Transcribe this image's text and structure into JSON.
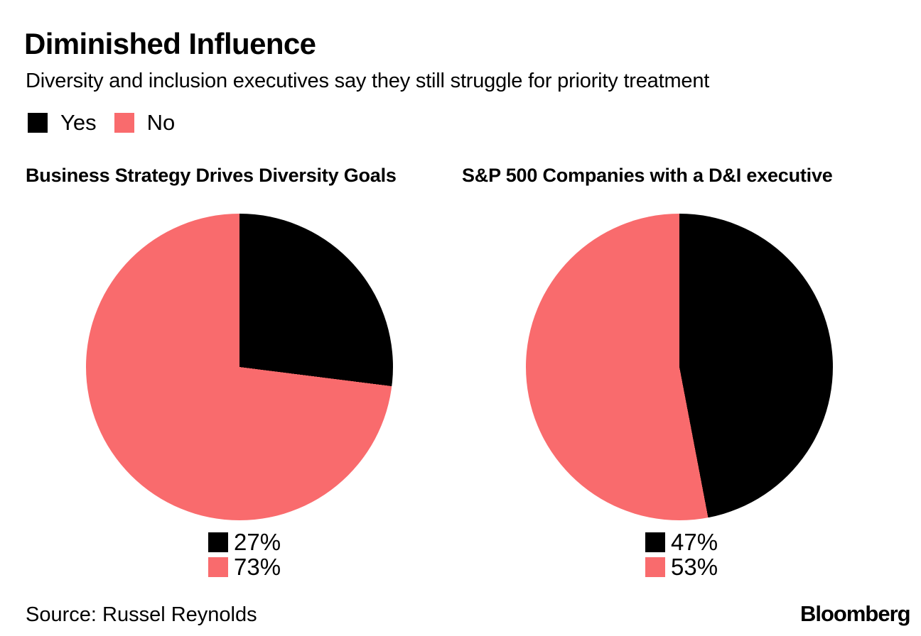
{
  "header": {
    "title": "Diminished Influence",
    "subtitle": "Diversity and inclusion executives say they still struggle for priority treatment"
  },
  "colors": {
    "yes": "#000000",
    "no": "#F96B6D",
    "text": "#000000",
    "background": "#FFFFFF"
  },
  "legend": {
    "items": [
      {
        "label": "Yes",
        "color": "#000000"
      },
      {
        "label": "No",
        "color": "#F96B6D"
      }
    ]
  },
  "chart_data": [
    {
      "type": "pie",
      "title": "Business Strategy Drives Diversity Goals",
      "categories": [
        "Yes",
        "No"
      ],
      "values": [
        27,
        73
      ],
      "labels": [
        "27%",
        "73%"
      ],
      "colors": [
        "#000000",
        "#F96B6D"
      ],
      "start_angle_deg": 0,
      "direction": "clockwise",
      "legend_position": "below"
    },
    {
      "type": "pie",
      "title": "S&P 500 Companies with a D&I executive",
      "categories": [
        "Yes",
        "No"
      ],
      "values": [
        47,
        53
      ],
      "labels": [
        "47%",
        "53%"
      ],
      "colors": [
        "#000000",
        "#F96B6D"
      ],
      "start_angle_deg": 0,
      "direction": "clockwise",
      "legend_position": "below"
    }
  ],
  "footer": {
    "source": "Source: Russel Reynolds",
    "brand": "Bloomberg"
  }
}
